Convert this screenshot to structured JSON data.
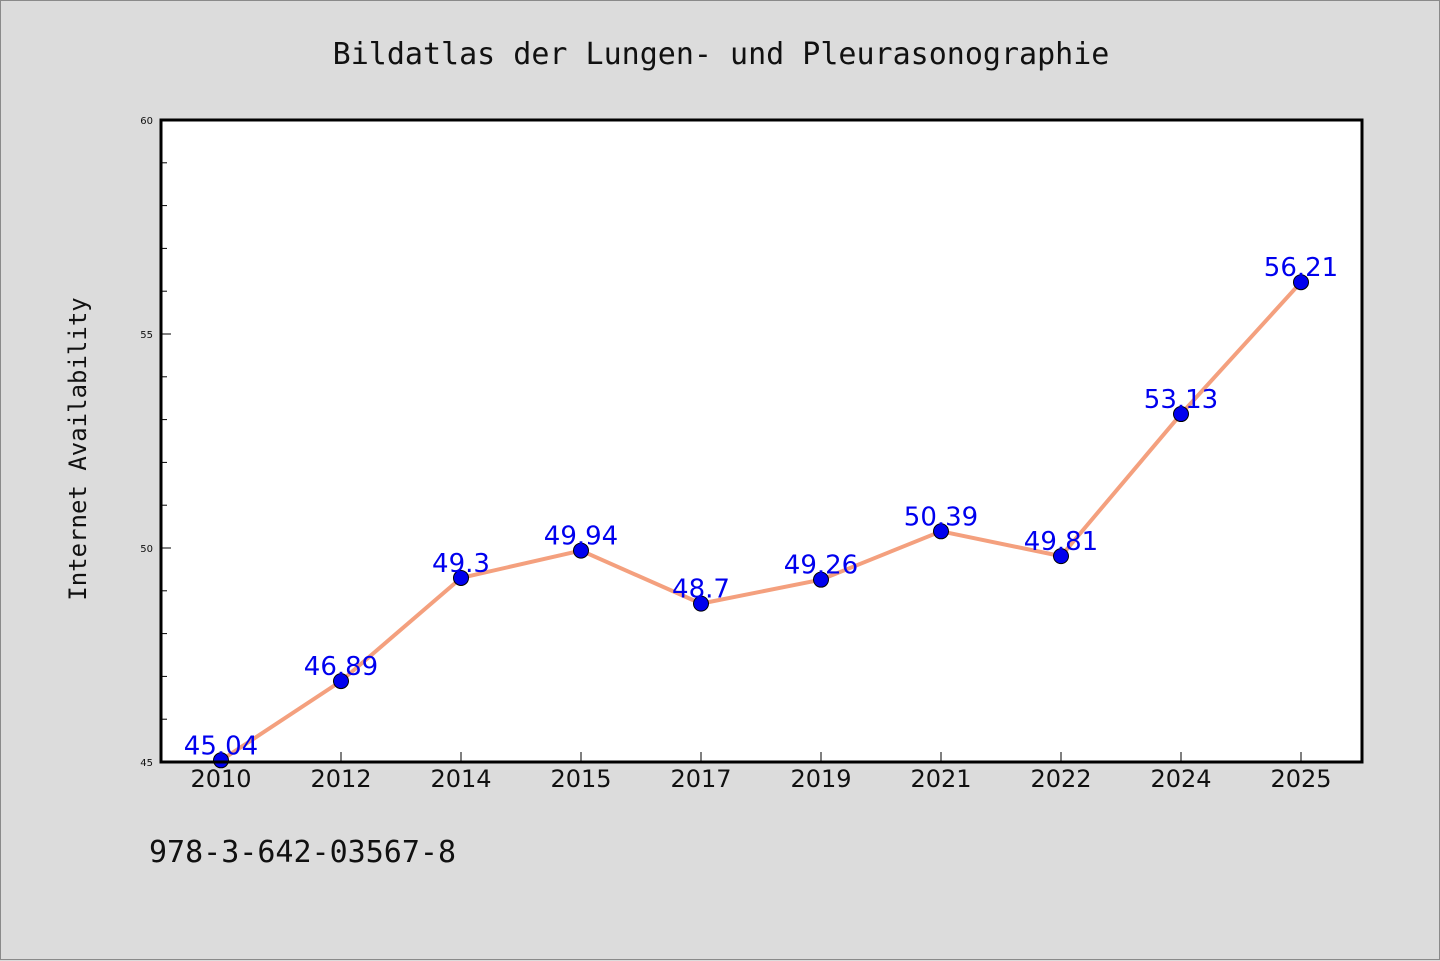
{
  "chart_data": {
    "type": "line",
    "title": "Bildatlas der Lungen- und Pleurasonographie",
    "xlabel": "",
    "ylabel": "Internet Availability",
    "categories": [
      "2010",
      "2012",
      "2014",
      "2015",
      "2017",
      "2019",
      "2021",
      "2022",
      "2024",
      "2025"
    ],
    "series": [
      {
        "values": [
          45.04,
          46.89,
          49.3,
          49.94,
          48.7,
          49.26,
          50.39,
          49.81,
          53.13,
          56.21
        ],
        "labels": [
          "45.04",
          "46.89",
          "49.3",
          "49.94",
          "48.7",
          "49.26",
          "50.39",
          "49.81",
          "53.13",
          "56.21"
        ]
      }
    ],
    "ylim": [
      45,
      60
    ],
    "yticks": [
      45,
      50,
      55,
      60
    ],
    "ytick_labels": [
      "45",
      "50",
      "55",
      "60"
    ],
    "y_minor_step": 1,
    "grid": false,
    "legend": "none",
    "colors": {
      "line": "#f4a07e",
      "marker": "#0000ee",
      "data_label": "#0000ee",
      "background": "#dcdcdc",
      "plot_background": "#ffffff",
      "axis": "#000000"
    }
  },
  "footer": {
    "isbn": "978-3-642-03567-8"
  }
}
